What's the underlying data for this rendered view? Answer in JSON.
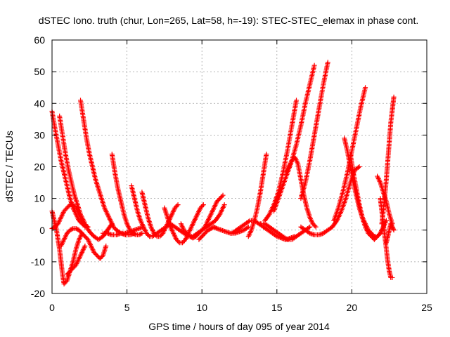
{
  "chart_data": {
    "type": "scatter",
    "title": "dSTEC Iono. truth (chur, Lon=265, Lat=58, h=-19): STEC-STEC_elemax in phase cont.",
    "xlabel": "GPS time / hours of day 095 of year 2014",
    "ylabel": "dSTEC  / TECUs",
    "xlim": [
      0,
      25
    ],
    "ylim": [
      -20,
      60
    ],
    "x_ticks": [
      "0",
      "5",
      "10",
      "15",
      "20",
      "25"
    ],
    "y_ticks": [
      "-20",
      "-10",
      "0",
      "10",
      "20",
      "30",
      "40",
      "50",
      "60"
    ],
    "grid": true,
    "marker": "+",
    "color": "#ff0000",
    "series": [
      {
        "x": [
          0.0,
          0.2,
          0.4,
          0.6,
          0.8,
          1.0,
          1.2,
          1.4,
          1.6,
          1.8,
          2.0,
          2.2,
          2.4
        ],
        "y": [
          37.5,
          32,
          27,
          22,
          18,
          14,
          10,
          7,
          5,
          3,
          2,
          1.5,
          1
        ]
      },
      {
        "x": [
          0.5,
          0.7,
          0.9,
          1.1,
          1.3,
          1.5,
          1.7,
          1.9,
          2.1,
          2.3,
          2.5,
          2.8,
          3.1,
          3.4,
          3.7,
          4.0
        ],
        "y": [
          36,
          30,
          24,
          19,
          15,
          11,
          8,
          5,
          3,
          1,
          -0.5,
          -2,
          -3,
          -2,
          0,
          2
        ]
      },
      {
        "x": [
          1.9,
          2.1,
          2.3,
          2.5,
          2.7,
          2.9,
          3.1,
          3.3,
          3.5,
          3.7,
          3.9,
          4.1,
          4.3,
          4.6,
          4.9,
          5.2,
          5.5
        ],
        "y": [
          41,
          35,
          29,
          24,
          20,
          16,
          13,
          10,
          7,
          5,
          3,
          1,
          0,
          -1,
          -1.5,
          -1.5,
          -1
        ]
      },
      {
        "x": [
          0.0,
          0.1,
          0.2,
          0.3,
          0.4,
          0.5,
          0.6,
          0.7,
          0.8,
          1.0,
          1.2,
          1.4,
          1.6,
          1.8,
          2.0
        ],
        "y": [
          6,
          4,
          2,
          0,
          -3,
          -6,
          -10,
          -14,
          -17,
          -16,
          -13,
          -10,
          -6,
          -3,
          -1
        ]
      },
      {
        "x": [
          0.0,
          0.2,
          0.4,
          0.6,
          0.8,
          1.0,
          1.2,
          1.4,
          1.6,
          1.8,
          2.0,
          2.2
        ],
        "y": [
          0.5,
          1,
          2,
          4,
          6,
          7,
          8,
          8,
          7,
          5,
          3,
          1
        ]
      },
      {
        "x": [
          0.6,
          0.8,
          1.0,
          1.2,
          1.4,
          1.6,
          1.8,
          2.0,
          2.2,
          2.4,
          2.6,
          2.8,
          3.0,
          3.2,
          3.4,
          3.6
        ],
        "y": [
          -5,
          -3,
          -1,
          0,
          0.5,
          0.5,
          0,
          -1,
          -2,
          -3,
          -5,
          -7,
          -8,
          -9,
          -8,
          -5
        ]
      },
      {
        "x": [
          1.0,
          1.2,
          1.4,
          1.6,
          1.8,
          2.0,
          2.2
        ],
        "y": [
          -14,
          -13,
          -12,
          -11,
          -9,
          -7,
          -5
        ]
      },
      {
        "x": [
          4.0,
          4.2,
          4.4,
          4.6,
          4.8,
          5.0,
          5.2,
          5.4,
          5.6,
          5.8,
          6.0
        ],
        "y": [
          24,
          18,
          13,
          9,
          5,
          2,
          0,
          -1,
          -1.5,
          -1.5,
          -1
        ]
      },
      {
        "x": [
          3.4,
          3.7,
          4.0,
          4.3,
          4.6,
          4.9,
          5.2,
          5.5,
          5.8,
          6.1
        ],
        "y": [
          -1,
          -1,
          -1.5,
          -1.5,
          -1,
          -1,
          -0.5,
          0,
          0.5,
          1
        ]
      },
      {
        "x": [
          5.3,
          5.5,
          5.7,
          5.9,
          6.1,
          6.3,
          6.5,
          6.7,
          7.0,
          7.3,
          7.6,
          7.9,
          8.2,
          8.5,
          8.8,
          9.1,
          9.4,
          9.7,
          10.0,
          10.3,
          10.6,
          10.9,
          11.2,
          11.5
        ],
        "y": [
          14,
          10,
          6,
          3,
          1,
          -1,
          -2,
          -2,
          -1,
          0,
          1,
          2,
          1,
          0,
          -1,
          -2,
          -2,
          -1,
          0,
          1,
          2,
          3,
          5,
          8
        ]
      },
      {
        "x": [
          6.0,
          6.2,
          6.4,
          6.6,
          6.8,
          7.0,
          7.2,
          7.4,
          7.6,
          7.8,
          8.0,
          8.2,
          8.4
        ],
        "y": [
          12,
          8,
          4,
          1,
          -1,
          -2,
          -2,
          -1,
          1,
          3,
          5,
          7,
          8
        ]
      },
      {
        "x": [
          7.5,
          7.7,
          7.9,
          8.1,
          8.3,
          8.5,
          8.7,
          8.9,
          9.1,
          9.3,
          9.5,
          9.7,
          9.9,
          10.1
        ],
        "y": [
          7,
          4,
          1,
          -1,
          -3,
          -4,
          -4,
          -3,
          -1,
          1,
          3,
          5,
          7,
          8
        ]
      },
      {
        "x": [
          8.6,
          8.8,
          9.0,
          9.2,
          9.4,
          9.6,
          9.8,
          10.0,
          10.2,
          10.4,
          10.6,
          10.8,
          11.0,
          11.2,
          11.4
        ],
        "y": [
          2,
          0,
          -1,
          -2,
          -2.5,
          -2,
          -1,
          0,
          1,
          3,
          5,
          7,
          9,
          10,
          11
        ]
      },
      {
        "x": [
          9.8,
          10.0,
          10.2,
          10.4,
          10.6,
          10.8,
          11.0,
          11.3,
          11.6,
          11.9,
          12.2,
          12.5,
          12.8,
          13.1
        ],
        "y": [
          -3,
          -2,
          -1,
          0,
          0.5,
          1,
          0.5,
          0,
          -0.5,
          -1,
          -1,
          -0.5,
          0,
          1
        ]
      },
      {
        "x": [
          12.0,
          12.3,
          12.6,
          12.9,
          13.2,
          13.5,
          13.8,
          14.1,
          14.4,
          14.7,
          15.0,
          15.3,
          15.6,
          15.9,
          16.2
        ],
        "y": [
          -1,
          0,
          1,
          2,
          3,
          3,
          2,
          1,
          0,
          -1,
          -2,
          -2.5,
          -3,
          -2.5,
          -2
        ]
      },
      {
        "x": [
          13.1,
          13.3,
          13.5,
          13.7,
          13.9,
          14.1,
          14.3
        ],
        "y": [
          -2,
          0,
          3,
          7,
          12,
          18,
          24
        ]
      },
      {
        "x": [
          13.9,
          14.2,
          14.5,
          14.8,
          15.1,
          15.4,
          15.7,
          16.0,
          16.3,
          16.6,
          16.9,
          17.2
        ],
        "y": [
          2,
          2,
          1,
          0,
          -1,
          -2,
          -3,
          -3,
          -2,
          -1,
          0,
          1
        ]
      },
      {
        "x": [
          14.2,
          14.5,
          14.8,
          15.1,
          15.4,
          15.7,
          16.0,
          16.3
        ],
        "y": [
          3,
          5,
          8,
          12,
          18,
          25,
          33,
          41
        ]
      },
      {
        "x": [
          14.8,
          15.1,
          15.4,
          15.7,
          16.0,
          16.3,
          16.6,
          16.9,
          17.2,
          17.5
        ],
        "y": [
          6,
          10,
          14,
          18,
          22,
          27,
          33,
          40,
          46,
          52
        ]
      },
      {
        "x": [
          15.6,
          15.8,
          16.0,
          16.2,
          16.4,
          16.6,
          16.8,
          17.0,
          17.2,
          17.4,
          17.6
        ],
        "y": [
          18,
          20,
          22,
          23,
          21,
          16,
          11,
          7,
          4,
          2,
          1
        ]
      },
      {
        "x": [
          16.6,
          16.9,
          17.2,
          17.5,
          17.8,
          18.1,
          18.4
        ],
        "y": [
          10,
          15,
          22,
          30,
          38,
          46,
          53
        ]
      },
      {
        "x": [
          16.6,
          16.9,
          17.2,
          17.5,
          17.8,
          18.1,
          18.4,
          18.7,
          19.0,
          19.3,
          19.6,
          19.9,
          20.2,
          20.5
        ],
        "y": [
          1,
          0,
          -1,
          -1.5,
          -1.5,
          -1,
          0,
          1,
          3,
          6,
          10,
          15,
          19,
          20
        ]
      },
      {
        "x": [
          18.8,
          19.1,
          19.4,
          19.7,
          20.0,
          20.3,
          20.6,
          20.9
        ],
        "y": [
          3,
          7,
          12,
          18,
          25,
          32,
          39,
          45
        ]
      },
      {
        "x": [
          19.5,
          19.7,
          19.9,
          20.1,
          20.3,
          20.5,
          20.7,
          20.9,
          21.1,
          21.3,
          21.5,
          21.7,
          21.9,
          22.1
        ],
        "y": [
          29,
          25,
          20,
          15,
          11,
          7,
          4,
          2,
          0,
          -1,
          -2,
          -2,
          -1,
          1
        ]
      },
      {
        "x": [
          19.9,
          20.1,
          20.3,
          20.5,
          20.7,
          20.9,
          21.1,
          21.3,
          21.5,
          21.7,
          21.9,
          22.1,
          22.3
        ],
        "y": [
          24,
          18,
          13,
          8,
          4,
          1,
          -1,
          -2,
          -3,
          -2,
          -1,
          1,
          3
        ]
      },
      {
        "x": [
          21.7,
          21.9,
          22.1,
          22.3,
          22.5,
          22.7
        ],
        "y": [
          17,
          15,
          12,
          9,
          5,
          2
        ]
      },
      {
        "x": [
          21.9,
          22.0,
          22.1,
          22.2,
          22.3,
          22.4,
          22.5,
          22.6,
          22.7
        ],
        "y": [
          10,
          6,
          2,
          -2,
          -6,
          -10,
          -13,
          -15,
          -15
        ]
      },
      {
        "x": [
          22.0,
          22.1,
          22.2,
          22.3,
          22.4,
          22.5,
          22.6,
          22.7,
          22.8
        ],
        "y": [
          2,
          6,
          11,
          16,
          22,
          28,
          34,
          38,
          42
        ]
      },
      {
        "x": [
          22.3,
          22.4,
          22.5,
          22.6,
          22.7,
          22.8
        ],
        "y": [
          -4,
          -2,
          0,
          2,
          1,
          0
        ]
      }
    ]
  }
}
